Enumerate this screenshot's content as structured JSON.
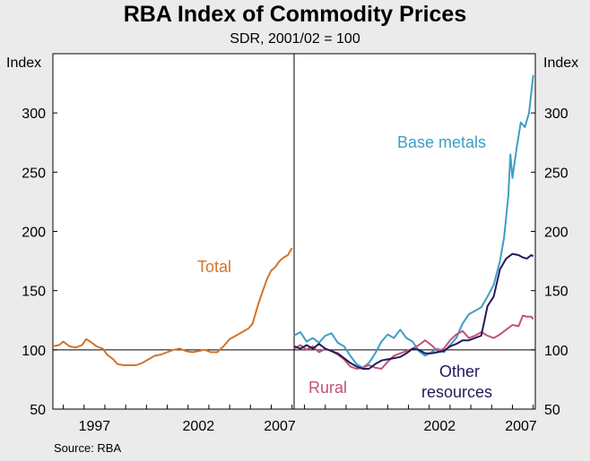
{
  "chart_data": {
    "type": "line",
    "title": "RBA Index of Commodity Prices",
    "subtitle": "SDR, 2001/02 = 100",
    "source": "Source: RBA",
    "ylabel_left": "Index",
    "ylabel_right": "Index",
    "ylim": [
      50,
      350
    ],
    "yticks": [
      50,
      100,
      150,
      200,
      250,
      300
    ],
    "grid": false,
    "panels": [
      {
        "name": "left",
        "xlim": [
          1995.5,
          2007.1
        ],
        "xticks": [
          "1997",
          "2002",
          "2007"
        ],
        "series": [
          {
            "name": "Total",
            "color": "#d4742a",
            "points": [
              [
                1995.5,
                103
              ],
              [
                1995.8,
                104
              ],
              [
                1996.0,
                107
              ],
              [
                1996.3,
                103
              ],
              [
                1996.6,
                102
              ],
              [
                1996.9,
                104
              ],
              [
                1997.1,
                109
              ],
              [
                1997.3,
                107
              ],
              [
                1997.6,
                103
              ],
              [
                1997.9,
                101
              ],
              [
                1998.1,
                96
              ],
              [
                1998.4,
                92
              ],
              [
                1998.6,
                88
              ],
              [
                1998.9,
                87
              ],
              [
                1999.2,
                87
              ],
              [
                1999.5,
                87
              ],
              [
                1999.8,
                89
              ],
              [
                2000.1,
                92
              ],
              [
                2000.4,
                95
              ],
              [
                2000.7,
                96
              ],
              [
                2001.0,
                98
              ],
              [
                2001.3,
                100
              ],
              [
                2001.6,
                101
              ],
              [
                2001.9,
                99
              ],
              [
                2002.2,
                98
              ],
              [
                2002.5,
                99
              ],
              [
                2002.8,
                100
              ],
              [
                2003.1,
                98
              ],
              [
                2003.4,
                98
              ],
              [
                2003.7,
                103
              ],
              [
                2004.0,
                109
              ],
              [
                2004.3,
                112
              ],
              [
                2004.6,
                115
              ],
              [
                2004.9,
                118
              ],
              [
                2005.1,
                122
              ],
              [
                2005.25,
                131
              ],
              [
                2005.4,
                140
              ],
              [
                2005.6,
                150
              ],
              [
                2005.8,
                160
              ],
              [
                2006.0,
                167
              ],
              [
                2006.2,
                170
              ],
              [
                2006.4,
                175
              ],
              [
                2006.6,
                178
              ],
              [
                2006.8,
                180
              ],
              [
                2007.0,
                186
              ]
            ]
          }
        ]
      },
      {
        "name": "right",
        "xlim": [
          1995.5,
          2007.1
        ],
        "xticks": [
          "2002",
          "2007"
        ],
        "series": [
          {
            "name": "Base metals",
            "color": "#3d9ec7",
            "points": [
              [
                1995.5,
                112
              ],
              [
                1995.8,
                115
              ],
              [
                1996.1,
                107
              ],
              [
                1996.4,
                110
              ],
              [
                1996.7,
                106
              ],
              [
                1997.0,
                112
              ],
              [
                1997.3,
                114
              ],
              [
                1997.6,
                106
              ],
              [
                1997.9,
                103
              ],
              [
                1998.2,
                95
              ],
              [
                1998.5,
                88
              ],
              [
                1998.8,
                85
              ],
              [
                1999.1,
                89
              ],
              [
                1999.4,
                97
              ],
              [
                1999.7,
                107
              ],
              [
                2000.0,
                113
              ],
              [
                2000.3,
                110
              ],
              [
                2000.6,
                117
              ],
              [
                2000.9,
                110
              ],
              [
                2001.2,
                107
              ],
              [
                2001.5,
                99
              ],
              [
                2001.8,
                95
              ],
              [
                2002.1,
                98
              ],
              [
                2002.4,
                101
              ],
              [
                2002.7,
                98
              ],
              [
                2003.0,
                104
              ],
              [
                2003.3,
                110
              ],
              [
                2003.6,
                122
              ],
              [
                2003.9,
                130
              ],
              [
                2004.2,
                133
              ],
              [
                2004.5,
                136
              ],
              [
                2004.8,
                145
              ],
              [
                2005.1,
                155
              ],
              [
                2005.4,
                175
              ],
              [
                2005.6,
                195
              ],
              [
                2005.8,
                230
              ],
              [
                2005.9,
                265
              ],
              [
                2006.0,
                245
              ],
              [
                2006.2,
                270
              ],
              [
                2006.4,
                292
              ],
              [
                2006.6,
                288
              ],
              [
                2006.8,
                300
              ],
              [
                2007.0,
                332
              ]
            ]
          },
          {
            "name": "Rural",
            "color": "#c2527b",
            "points": [
              [
                1995.5,
                101
              ],
              [
                1995.8,
                104
              ],
              [
                1996.1,
                100
              ],
              [
                1996.4,
                103
              ],
              [
                1996.7,
                98
              ],
              [
                1997.0,
                101
              ],
              [
                1997.3,
                99
              ],
              [
                1997.6,
                96
              ],
              [
                1997.9,
                92
              ],
              [
                1998.2,
                86
              ],
              [
                1998.5,
                84
              ],
              [
                1998.8,
                85
              ],
              [
                1999.1,
                87
              ],
              [
                1999.4,
                85
              ],
              [
                1999.7,
                84
              ],
              [
                2000.0,
                90
              ],
              [
                2000.3,
                95
              ],
              [
                2000.6,
                97
              ],
              [
                2000.9,
                99
              ],
              [
                2001.2,
                101
              ],
              [
                2001.5,
                104
              ],
              [
                2001.8,
                108
              ],
              [
                2002.1,
                104
              ],
              [
                2002.4,
                99
              ],
              [
                2002.7,
                101
              ],
              [
                2003.0,
                108
              ],
              [
                2003.3,
                113
              ],
              [
                2003.6,
                116
              ],
              [
                2003.9,
                110
              ],
              [
                2004.2,
                112
              ],
              [
                2004.5,
                115
              ],
              [
                2004.8,
                112
              ],
              [
                2005.1,
                110
              ],
              [
                2005.4,
                113
              ],
              [
                2005.7,
                117
              ],
              [
                2006.0,
                121
              ],
              [
                2006.3,
                120
              ],
              [
                2006.5,
                129
              ],
              [
                2006.7,
                128
              ],
              [
                2006.9,
                128
              ],
              [
                2007.0,
                126
              ]
            ]
          },
          {
            "name": "Other resources",
            "color": "#231a5c",
            "points": [
              [
                1995.5,
                103
              ],
              [
                1995.8,
                101
              ],
              [
                1996.1,
                104
              ],
              [
                1996.4,
                101
              ],
              [
                1996.7,
                105
              ],
              [
                1997.0,
                101
              ],
              [
                1997.3,
                99
              ],
              [
                1997.6,
                97
              ],
              [
                1997.9,
                93
              ],
              [
                1998.2,
                89
              ],
              [
                1998.5,
                86
              ],
              [
                1998.8,
                84
              ],
              [
                1999.1,
                84
              ],
              [
                1999.4,
                88
              ],
              [
                1999.7,
                91
              ],
              [
                2000.0,
                92
              ],
              [
                2000.3,
                93
              ],
              [
                2000.6,
                94
              ],
              [
                2000.9,
                97
              ],
              [
                2001.2,
                101
              ],
              [
                2001.5,
                100
              ],
              [
                2001.8,
                97
              ],
              [
                2002.1,
                97
              ],
              [
                2002.4,
                98
              ],
              [
                2002.7,
                99
              ],
              [
                2003.0,
                103
              ],
              [
                2003.3,
                105
              ],
              [
                2003.6,
                108
              ],
              [
                2003.9,
                108
              ],
              [
                2004.2,
                110
              ],
              [
                2004.5,
                112
              ],
              [
                2004.8,
                137
              ],
              [
                2005.1,
                145
              ],
              [
                2005.4,
                168
              ],
              [
                2005.7,
                177
              ],
              [
                2006.0,
                181
              ],
              [
                2006.3,
                180
              ],
              [
                2006.5,
                178
              ],
              [
                2006.7,
                177
              ],
              [
                2006.9,
                180
              ],
              [
                2007.0,
                179
              ]
            ]
          }
        ]
      }
    ]
  }
}
